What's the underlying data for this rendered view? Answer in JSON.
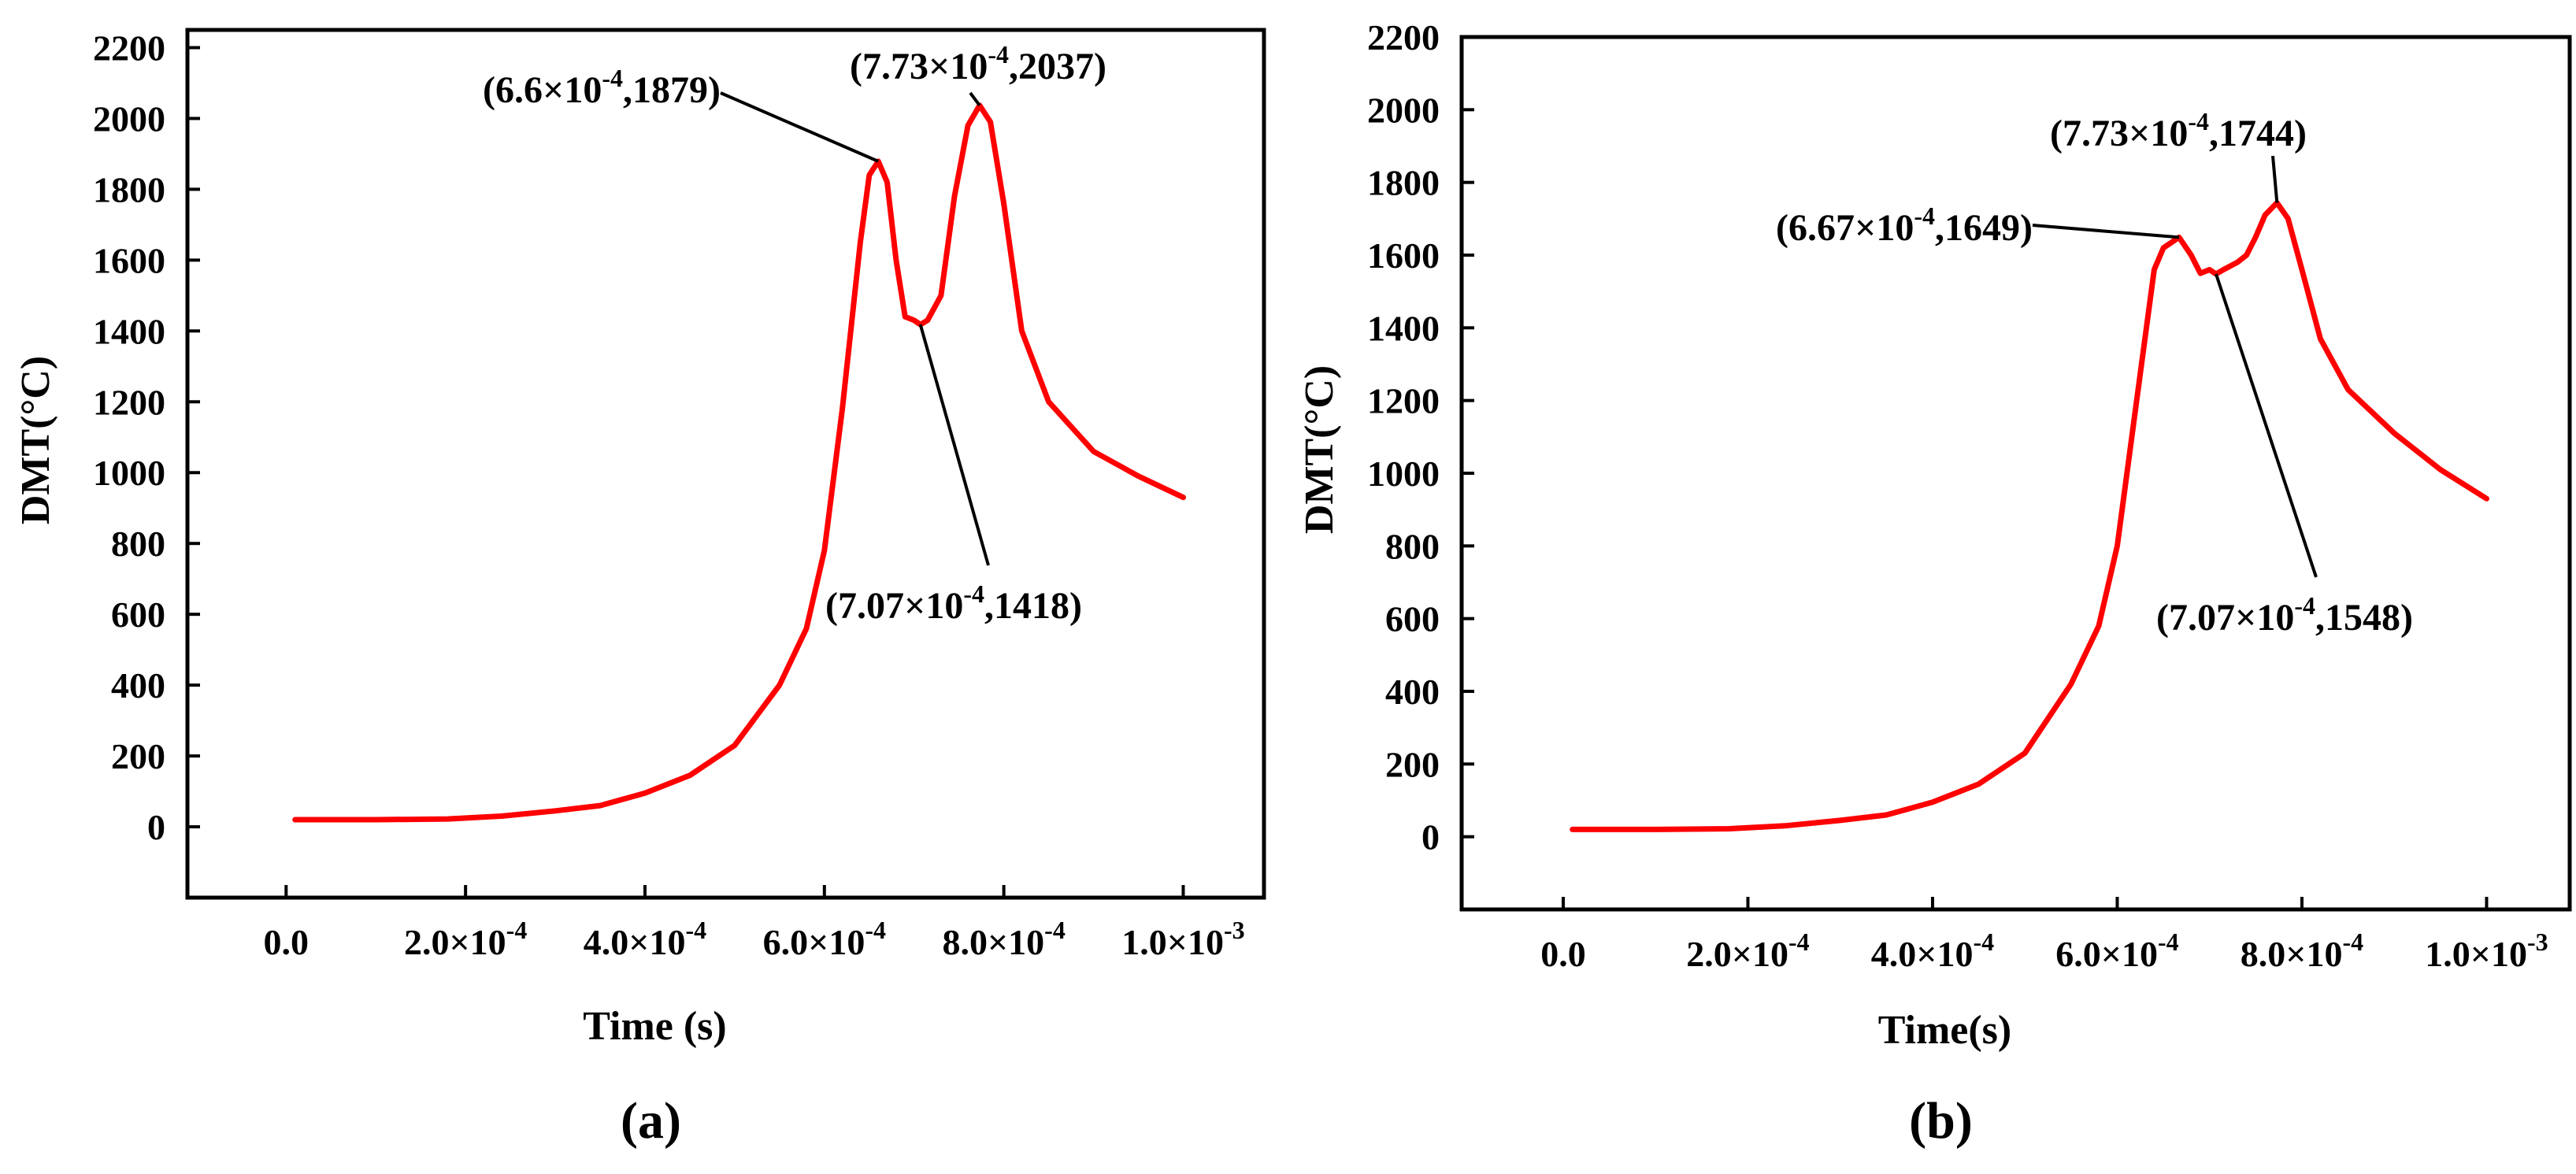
{
  "chart_data": [
    {
      "type": "line",
      "panel_label": "(a)",
      "xlabel": "Time (s)",
      "ylabel": "DMT(°C)",
      "xlim": [
        -0.00011,
        0.00109
      ],
      "ylim": [
        -200,
        2250
      ],
      "xticks": [
        {
          "value": 0.0,
          "mant": "0.0",
          "exp": ""
        },
        {
          "value": 0.0002,
          "mant": "2.0×10",
          "exp": "-4"
        },
        {
          "value": 0.0004,
          "mant": "4.0×10",
          "exp": "-4"
        },
        {
          "value": 0.0006,
          "mant": "6.0×10",
          "exp": "-4"
        },
        {
          "value": 0.0008,
          "mant": "8.0×10",
          "exp": "-4"
        },
        {
          "value": 0.001,
          "mant": "1.0×10",
          "exp": "-3"
        }
      ],
      "yticks": [
        0,
        200,
        400,
        600,
        800,
        1000,
        1200,
        1400,
        1600,
        1800,
        2000,
        2200
      ],
      "series": [
        {
          "name": "DMT",
          "color": "#ff0000",
          "x": [
            1e-05,
            0.0001,
            0.00018,
            0.00024,
            0.0003,
            0.00035,
            0.0004,
            0.00045,
            0.0005,
            0.00055,
            0.00058,
            0.0006,
            0.00062,
            0.00064,
            0.00065,
            0.00066,
            0.00067,
            0.00068,
            0.00069,
            0.0007,
            0.000707,
            0.000715,
            0.00073,
            0.000745,
            0.00076,
            0.000773,
            0.000785,
            0.0008,
            0.00082,
            0.00085,
            0.0009,
            0.00095,
            0.001
          ],
          "y": [
            20,
            20,
            22,
            30,
            45,
            60,
            95,
            145,
            230,
            400,
            560,
            780,
            1180,
            1650,
            1840,
            1879,
            1820,
            1600,
            1440,
            1430,
            1418,
            1430,
            1500,
            1780,
            1980,
            2037,
            1990,
            1760,
            1400,
            1200,
            1060,
            990,
            930
          ]
        }
      ],
      "annotations": [
        {
          "pre": "(6.6×10",
          "exp": "-4",
          "post": ",1879)",
          "x": 0.00066,
          "y": 1879
        },
        {
          "pre": "(7.73×10",
          "exp": "-4",
          "post": ",2037)",
          "x": 0.000773,
          "y": 2037
        },
        {
          "pre": "(7.07×10",
          "exp": "-4",
          "post": ",1418)",
          "x": 0.000707,
          "y": 1418
        }
      ]
    },
    {
      "type": "line",
      "panel_label": "(b)",
      "xlabel": "Time(s)",
      "ylabel": "DMT(°C)",
      "xlim": [
        -0.00011,
        0.00109
      ],
      "ylim": [
        -200,
        2200
      ],
      "xticks": [
        {
          "value": 0.0,
          "mant": "0.0",
          "exp": ""
        },
        {
          "value": 0.0002,
          "mant": "2.0×10",
          "exp": "-4"
        },
        {
          "value": 0.0004,
          "mant": "4.0×10",
          "exp": "-4"
        },
        {
          "value": 0.0006,
          "mant": "6.0×10",
          "exp": "-4"
        },
        {
          "value": 0.0008,
          "mant": "8.0×10",
          "exp": "-4"
        },
        {
          "value": 0.001,
          "mant": "1.0×10",
          "exp": "-3"
        }
      ],
      "yticks": [
        0,
        200,
        400,
        600,
        800,
        1000,
        1200,
        1400,
        1600,
        1800,
        2000,
        2200
      ],
      "series": [
        {
          "name": "DMT",
          "color": "#ff0000",
          "x": [
            1e-05,
            0.0001,
            0.00018,
            0.00024,
            0.0003,
            0.00035,
            0.0004,
            0.00045,
            0.0005,
            0.00055,
            0.00058,
            0.0006,
            0.00062,
            0.00064,
            0.00065,
            0.000667,
            0.00068,
            0.00069,
            0.0007,
            0.000707,
            0.000715,
            0.00073,
            0.00074,
            0.00075,
            0.00076,
            0.000773,
            0.000785,
            0.0008,
            0.00082,
            0.00085,
            0.0009,
            0.00095,
            0.001
          ],
          "y": [
            20,
            20,
            22,
            30,
            45,
            60,
            95,
            145,
            230,
            420,
            580,
            800,
            1180,
            1560,
            1620,
            1649,
            1600,
            1550,
            1560,
            1548,
            1560,
            1580,
            1600,
            1650,
            1710,
            1744,
            1700,
            1560,
            1370,
            1230,
            1110,
            1010,
            930
          ]
        }
      ],
      "annotations": [
        {
          "pre": "(6.67×10",
          "exp": "-4",
          "post": ",1649)",
          "x": 0.000667,
          "y": 1649
        },
        {
          "pre": "(7.73×10",
          "exp": "-4",
          "post": ",1744)",
          "x": 0.000773,
          "y": 1744
        },
        {
          "pre": "(7.07×10",
          "exp": "-4",
          "post": ",1548)",
          "x": 0.000707,
          "y": 1548
        }
      ]
    }
  ]
}
